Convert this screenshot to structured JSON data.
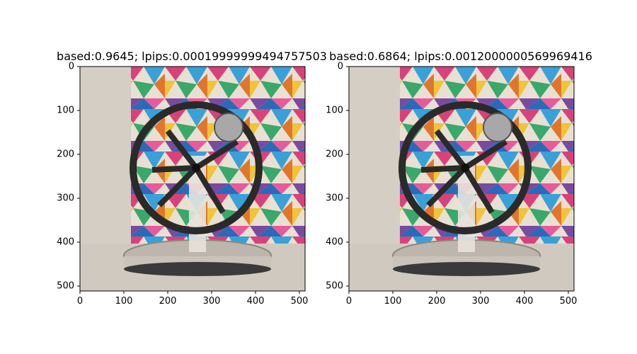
{
  "figure": {
    "panels": [
      {
        "title": "based:0.9645; lpips:0.00019999999494757503",
        "x_ticks": [
          "0",
          "100",
          "200",
          "300",
          "400",
          "500"
        ],
        "y_ticks": [
          "0",
          "100",
          "200",
          "300",
          "400",
          "500"
        ],
        "image_description": "Stirling engine with black flywheel and clear acrylic base in front of colorful geometric triangle wallpaper"
      },
      {
        "title": "based:0.6864; lpips:0.0012000000569969416",
        "x_ticks": [
          "0",
          "100",
          "200",
          "300",
          "400",
          "500"
        ],
        "y_ticks": [
          "0",
          "100",
          "200",
          "300",
          "400",
          "500"
        ],
        "image_description": "Stirling engine with black flywheel and clear acrylic base in front of colorful geometric triangle wallpaper"
      }
    ]
  },
  "colors": {
    "wall": "#d4cec4",
    "table": "#cfc9bf",
    "flywheel": "#2a2a2a",
    "pattern": [
      "#d8427a",
      "#3aa0d8",
      "#f0c43a",
      "#3aa86a",
      "#e0762e",
      "#7a4aa0",
      "#e85a9a",
      "#2a6ab8"
    ]
  }
}
